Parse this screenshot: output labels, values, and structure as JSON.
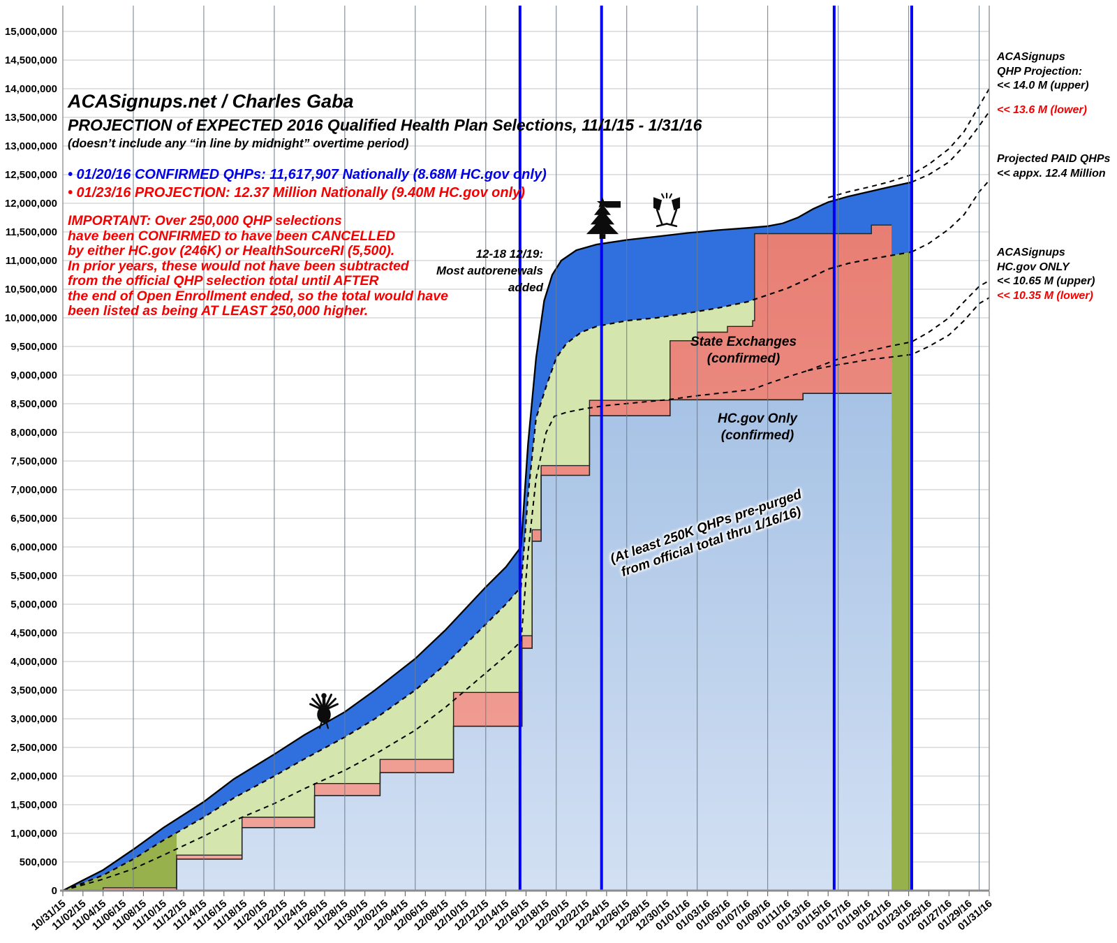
{
  "header": {
    "site": "ACASignups.net / Charles Gaba",
    "title": "PROJECTION of EXPECTED 2016 Qualified Health Plan Selections, 11/1/15 - 1/31/16",
    "subtitle": "(doesn’t include any “in line by midnight” overtime period)",
    "bullet_confirmed": "• 01/20/16 CONFIRMED QHPs: 11,617,907 Nationally (8.68M HC.gov only)",
    "bullet_projection": "• 01/23/16 PROJECTION: 12.37 Million Nationally (9.40M HC.gov only)",
    "important_lines": [
      "IMPORTANT: Over 250,000 QHP selections",
      "have been CONFIRMED to have been CANCELLED",
      "by either HC.gov (246K) or HealthSourceRI (5,500).",
      "In prior years, these would not have been subtracted",
      "from the official QHP selection total until AFTER",
      "the end of Open Enrollment ended, so the total would have",
      "been listed as being AT LEAST 250,000 higher."
    ]
  },
  "right_labels": {
    "qhp_projection_lines": [
      "ACASignups",
      "QHP Projection:",
      "<< 14.0 M (upper)"
    ],
    "qhp_projection_lower": "<< 13.6 M (lower)",
    "paid_lines": [
      "Projected PAID QHPs",
      "<< appx. 12.4 Million"
    ],
    "hcgov_only_lines": [
      "ACASignups",
      "HC.gov ONLY",
      "<< 10.65 M (upper)"
    ],
    "hcgov_only_lower": "<< 10.35 M (lower)"
  },
  "annotations": {
    "autorenewal_lines": [
      "12-18 12/19:",
      "Most autorenewals",
      "added"
    ],
    "state_exchanges_lines": [
      "State Exchanges",
      "(confirmed)"
    ],
    "hcgov_only_lines": [
      "HC.gov Only",
      "(confirmed)"
    ],
    "purge_note_lines": [
      "(At least 250K QHPs pre-purged",
      "from official total thru 1/16/16)"
    ],
    "icons": [
      "thanksgiving-turkey-icon",
      "christmas-tree-icon",
      "champagne-glasses-icon"
    ]
  },
  "chart_data": {
    "type": "area",
    "title": "PROJECTION of EXPECTED 2016 Qualified Health Plan Selections, 11/1/15 - 1/31/16",
    "x_unit_days_since": "10/31/15",
    "x_tick_step_days": 2,
    "x_tick_dates": [
      "10/31/15",
      "11/02/15",
      "11/04/15",
      "11/06/15",
      "11/08/15",
      "11/10/15",
      "11/12/15",
      "11/14/15",
      "11/16/15",
      "11/18/15",
      "11/20/15",
      "11/22/15",
      "11/24/15",
      "11/26/15",
      "11/28/15",
      "11/30/15",
      "12/02/15",
      "12/04/15",
      "12/06/15",
      "12/08/15",
      "12/10/15",
      "12/12/15",
      "12/14/15",
      "12/16/15",
      "12/18/15",
      "12/20/15",
      "12/22/15",
      "12/24/15",
      "12/26/15",
      "12/28/15",
      "12/30/15",
      "01/01/16",
      "01/03/16",
      "01/05/16",
      "01/07/16",
      "01/09/16",
      "01/11/16",
      "01/13/16",
      "01/15/16",
      "01/17/16",
      "01/19/16",
      "01/21/16",
      "01/23/16",
      "01/25/16",
      "01/27/16",
      "01/29/16",
      "01/31/16"
    ],
    "y_tick_labels": [
      "0",
      "500,000",
      "1,000,000",
      "1,500,000",
      "2,000,000",
      "2,500,000",
      "3,000,000",
      "3,500,000",
      "4,000,000",
      "4,500,000",
      "5,000,000",
      "5,500,000",
      "6,000,000",
      "6,500,000",
      "7,000,000",
      "7,500,000",
      "8,000,000",
      "8,500,000",
      "9,000,000",
      "9,500,000",
      "10,000,000",
      "10,500,000",
      "11,000,000",
      "11,500,000",
      "12,000,000",
      "12,500,000",
      "13,000,000",
      "13,500,000",
      "14,000,000",
      "14,500,000",
      "15,000,000"
    ],
    "ylim_millions": [
      0,
      15
    ],
    "grid": {
      "horizontal_step_millions": 0.5,
      "weekly_vline_days": [
        7,
        14,
        21,
        28,
        35,
        42,
        49,
        56,
        63,
        70,
        77,
        84,
        91
      ]
    },
    "deadline_vline_days": [
      45.4,
      53.5,
      76.6,
      84.3
    ],
    "confirmed_end_day": 82.3,
    "area_end_day": 84.3,
    "colors": {
      "hcgov_fill_top": "#a6c2e5",
      "hcgov_fill_bottom": "#d3e0f3",
      "state_fill_top": "#e87e73",
      "state_fill_bottom": "#f2a59c",
      "band_blue": "#3070de",
      "pale_green": "#d4e6ae",
      "dark_green": "#97b14c",
      "deadline_blue": "#0000ee",
      "dashed_black": "#000000",
      "text_blue": "#0000e8",
      "text_red": "#f50000"
    },
    "series": {
      "hcgov_confirmed_steps": {
        "name": "HC.gov Only (confirmed)",
        "points_day_millions": [
          [
            0,
            0
          ],
          [
            11.3,
            0.55
          ],
          [
            17.8,
            1.1
          ],
          [
            25,
            1.66
          ],
          [
            31.5,
            2.06
          ],
          [
            38.8,
            2.87
          ],
          [
            45.6,
            4.23
          ],
          [
            46.6,
            6.1
          ],
          [
            47.5,
            7.25
          ],
          [
            52.3,
            8.29
          ],
          [
            60.3,
            8.57
          ],
          [
            73.5,
            8.68
          ]
        ]
      },
      "total_confirmed_steps": {
        "name": "Total confirmed incl. State Exchanges",
        "points_day_millions": [
          [
            0,
            0
          ],
          [
            4,
            0.05
          ],
          [
            11.3,
            0.62
          ],
          [
            17.8,
            1.28
          ],
          [
            25,
            1.87
          ],
          [
            31.5,
            2.29
          ],
          [
            38.8,
            3.46
          ],
          [
            45.6,
            4.45
          ],
          [
            46.6,
            6.3
          ],
          [
            47.5,
            7.42
          ],
          [
            52.3,
            8.56
          ],
          [
            60.3,
            9.6
          ],
          [
            63,
            9.75
          ],
          [
            66,
            9.85
          ],
          [
            68.5,
            9.95
          ],
          [
            68.7,
            11.47
          ],
          [
            80.3,
            11.62
          ]
        ]
      },
      "projection_lower_dashed": {
        "name": "ACASignups projection (lower, dashed)",
        "points_day_millions": [
          [
            0,
            0
          ],
          [
            2,
            0.13
          ],
          [
            4,
            0.27
          ],
          [
            7,
            0.55
          ],
          [
            10,
            0.88
          ],
          [
            14,
            1.28
          ],
          [
            17,
            1.62
          ],
          [
            21,
            2.0
          ],
          [
            24,
            2.3
          ],
          [
            28,
            2.68
          ],
          [
            31,
            3.0
          ],
          [
            35,
            3.5
          ],
          [
            38,
            3.95
          ],
          [
            42,
            4.65
          ],
          [
            44,
            5.0
          ],
          [
            45.5,
            5.3
          ],
          [
            46.2,
            6.9
          ],
          [
            47,
            8.25
          ],
          [
            48,
            8.8
          ],
          [
            49,
            9.3
          ],
          [
            50,
            9.55
          ],
          [
            51.5,
            9.75
          ],
          [
            53,
            9.85
          ],
          [
            56,
            9.95
          ],
          [
            59,
            10.0
          ],
          [
            62,
            10.08
          ],
          [
            65,
            10.17
          ],
          [
            68,
            10.28
          ],
          [
            70,
            10.4
          ],
          [
            72,
            10.52
          ],
          [
            74,
            10.68
          ],
          [
            76,
            10.85
          ],
          [
            78,
            10.95
          ],
          [
            80,
            11.02
          ],
          [
            82,
            11.08
          ],
          [
            84.3,
            11.15
          ]
        ]
      },
      "projection_upper_solid": {
        "name": "ACASignups projection (upper, solid)",
        "points_day_millions": [
          [
            0,
            0
          ],
          [
            2,
            0.18
          ],
          [
            4,
            0.36
          ],
          [
            7,
            0.72
          ],
          [
            10,
            1.1
          ],
          [
            14,
            1.55
          ],
          [
            17,
            1.95
          ],
          [
            21,
            2.38
          ],
          [
            24,
            2.72
          ],
          [
            28,
            3.12
          ],
          [
            31,
            3.5
          ],
          [
            35,
            4.05
          ],
          [
            38,
            4.55
          ],
          [
            42,
            5.3
          ],
          [
            44,
            5.65
          ],
          [
            45.5,
            6.0
          ],
          [
            46.2,
            7.8
          ],
          [
            47,
            9.3
          ],
          [
            47.8,
            10.3
          ],
          [
            48.6,
            10.75
          ],
          [
            49.5,
            11.0
          ],
          [
            51,
            11.18
          ],
          [
            53,
            11.28
          ],
          [
            56,
            11.36
          ],
          [
            59,
            11.42
          ],
          [
            62,
            11.48
          ],
          [
            65,
            11.53
          ],
          [
            68,
            11.57
          ],
          [
            70,
            11.6
          ],
          [
            71.5,
            11.65
          ],
          [
            73,
            11.75
          ],
          [
            74.5,
            11.9
          ],
          [
            76,
            12.02
          ],
          [
            78,
            12.12
          ],
          [
            80,
            12.2
          ],
          [
            82,
            12.28
          ],
          [
            84.3,
            12.37
          ]
        ]
      },
      "hcgov_projection_dashed": {
        "name": "HC.gov only projection (dashed)",
        "points_day_millions": [
          [
            0,
            0
          ],
          [
            4,
            0.2
          ],
          [
            7,
            0.38
          ],
          [
            10,
            0.62
          ],
          [
            14,
            0.95
          ],
          [
            17,
            1.22
          ],
          [
            21,
            1.52
          ],
          [
            24,
            1.78
          ],
          [
            28,
            2.1
          ],
          [
            31,
            2.38
          ],
          [
            35,
            2.8
          ],
          [
            38,
            3.2
          ],
          [
            42,
            3.8
          ],
          [
            44,
            4.1
          ],
          [
            45.5,
            4.35
          ],
          [
            46.2,
            5.9
          ],
          [
            47,
            7.2
          ],
          [
            48,
            8.0
          ],
          [
            48.8,
            8.28
          ],
          [
            50,
            8.35
          ],
          [
            52,
            8.42
          ],
          [
            54,
            8.47
          ],
          [
            57,
            8.52
          ],
          [
            60,
            8.57
          ],
          [
            63,
            8.64
          ],
          [
            66,
            8.7
          ],
          [
            68.5,
            8.75
          ],
          [
            70,
            8.85
          ],
          [
            72,
            8.97
          ],
          [
            74,
            9.08
          ]
        ]
      },
      "hcgov_branch_upper": {
        "name": "HC.gov projection upper 10.65M",
        "points_day_millions": [
          [
            74,
            9.08
          ],
          [
            77,
            9.28
          ],
          [
            80,
            9.42
          ],
          [
            82,
            9.5
          ],
          [
            84.3,
            9.58
          ],
          [
            86,
            9.75
          ],
          [
            88,
            10.0
          ],
          [
            89.5,
            10.28
          ],
          [
            91,
            10.55
          ],
          [
            92,
            10.65
          ]
        ]
      },
      "hcgov_branch_lower": {
        "name": "HC.gov projection lower 10.35M",
        "points_day_millions": [
          [
            74,
            9.08
          ],
          [
            77,
            9.18
          ],
          [
            80,
            9.27
          ],
          [
            82,
            9.31
          ],
          [
            84.3,
            9.36
          ],
          [
            86,
            9.5
          ],
          [
            88,
            9.7
          ],
          [
            89.5,
            9.95
          ],
          [
            91,
            10.25
          ],
          [
            92,
            10.35
          ]
        ]
      },
      "paid_qhp_projection": {
        "name": "Projected PAID QHPs appx 12.4M",
        "points_day_millions": [
          [
            84.3,
            11.15
          ],
          [
            86,
            11.3
          ],
          [
            88,
            11.55
          ],
          [
            89.5,
            11.8
          ],
          [
            91,
            12.2
          ],
          [
            92,
            12.4
          ]
        ]
      },
      "qhp_projection_upper": {
        "name": "QHP projection upper 14.0M",
        "points_day_millions": [
          [
            76,
            12.1
          ],
          [
            78,
            12.2
          ],
          [
            80,
            12.28
          ],
          [
            82,
            12.37
          ],
          [
            84.3,
            12.5
          ],
          [
            86,
            12.68
          ],
          [
            88,
            12.95
          ],
          [
            89.5,
            13.25
          ],
          [
            91,
            13.7
          ],
          [
            92,
            14.0
          ]
        ]
      },
      "qhp_projection_lower": {
        "name": "QHP projection lower 13.6M",
        "points_day_millions": [
          [
            84.3,
            12.37
          ],
          [
            86,
            12.5
          ],
          [
            88,
            12.72
          ],
          [
            89.5,
            13.0
          ],
          [
            91,
            13.35
          ],
          [
            92,
            13.6
          ]
        ]
      }
    },
    "icon_markers": [
      {
        "name": "thanksgiving-turkey-icon",
        "day": 25.9,
        "millions": 3.15
      },
      {
        "name": "christmas-tree-icon",
        "day": 53.6,
        "millions": 11.75
      },
      {
        "name": "champagne-glasses-icon",
        "day": 60.0,
        "millions": 11.85
      }
    ]
  }
}
